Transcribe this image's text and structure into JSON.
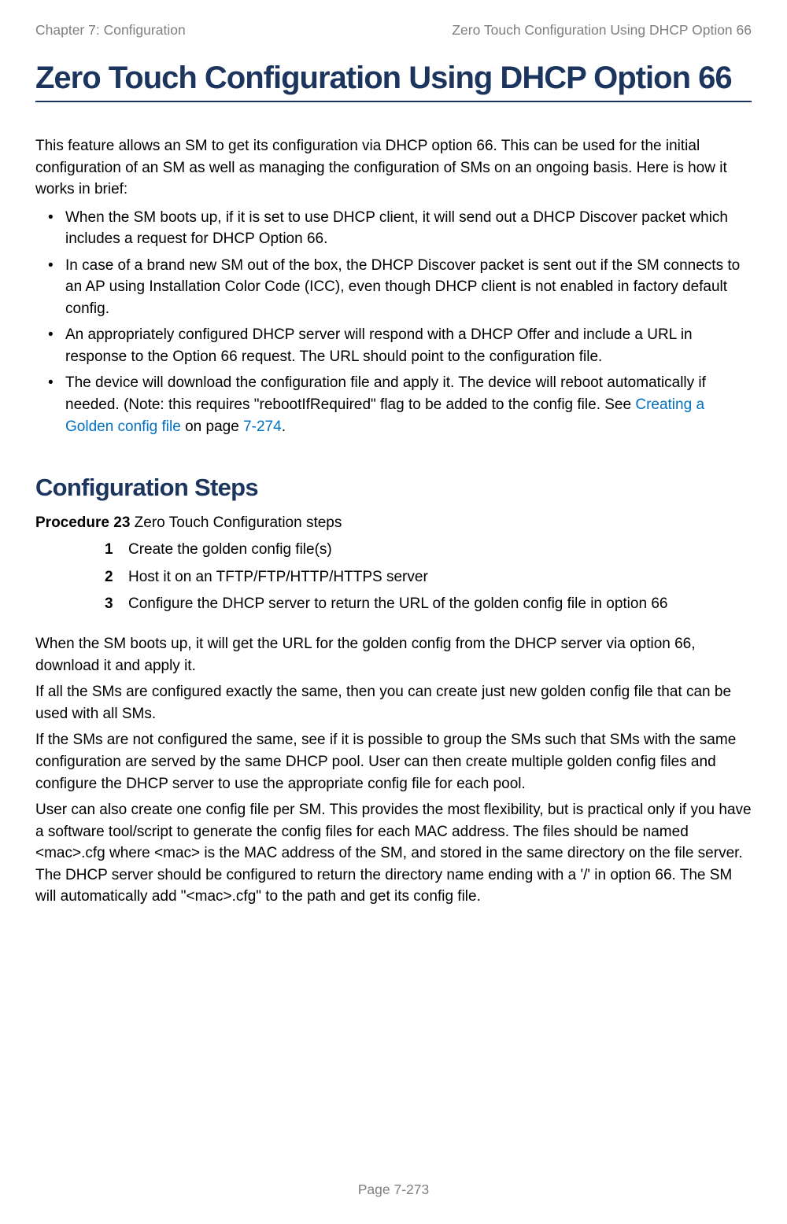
{
  "header": {
    "left": "Chapter 7:  Configuration",
    "right": "Zero Touch Configuration Using DHCP Option 66"
  },
  "title": "Zero Touch Configuration Using DHCP Option 66",
  "intro": "This feature allows an SM to get its configuration via DHCP option 66. This can be used for the initial configuration of an SM as well as managing the configuration of SMs on an ongoing basis. Here is how it works in brief:",
  "bullets": [
    "When the SM boots up, if it is set to use DHCP client, it will send out a DHCP Discover packet which includes a request for DHCP Option 66.",
    "In case of a brand new SM out of the box, the DHCP Discover packet is sent out if the SM connects to an AP using Installation Color Code (ICC), even though DHCP client is not enabled in factory default config.",
    "An appropriately configured DHCP server will respond with a DHCP Offer and include a URL in response to the Option 66 request. The URL should point to the configuration file."
  ],
  "bullet4": {
    "pre": "The device will download the configuration file and apply it. The device will reboot automatically if needed. (Note: this requires \"rebootIfRequired\" flag to be added to the config file. See ",
    "link1": "Creating a Golden config file",
    "mid": " on page ",
    "link2": "7-274",
    "post": "."
  },
  "section": {
    "heading": "Configuration Steps",
    "procedure_label_bold": "Procedure 23",
    "procedure_label_rest": " Zero Touch Configuration steps",
    "steps": [
      "Create the golden config file(s)",
      "Host it on an TFTP/FTP/HTTP/HTTPS server",
      "Configure the DHCP server to return the URL of the golden config file in option 66"
    ]
  },
  "paragraphs": [
    "When the SM boots up, it will get the URL for the golden config from the DHCP server via option 66, download it and apply it.",
    "If all the SMs are configured exactly the same, then you can create just new golden config file that can be used with all SMs.",
    "If the SMs are not configured the same, see if it is possible to group the SMs such that SMs with the same configuration are served by the same DHCP pool. User can then create multiple golden config files and configure the DHCP server to use the appropriate config file for each pool.",
    "User can also create one config file per SM. This provides the most flexibility, but is practical only if you have a software tool/script to generate the config files for each MAC address. The files should be named <mac>.cfg where <mac> is the MAC address of the SM, and stored in the same directory on the file server. The DHCP server should be configured to return the directory name ending with a '/' in option 66. The SM will automatically add \"<mac>.cfg\" to the path and get its config file."
  ],
  "footer": "Page 7-273",
  "colors": {
    "heading": "#1c355e",
    "header_text": "#7f7f7f",
    "link": "#0070c0",
    "body": "#000000",
    "background": "#ffffff"
  },
  "typography": {
    "body_fontsize": 19,
    "h1_fontsize": 40,
    "h2_fontsize": 31,
    "header_fontsize": 17.5
  }
}
